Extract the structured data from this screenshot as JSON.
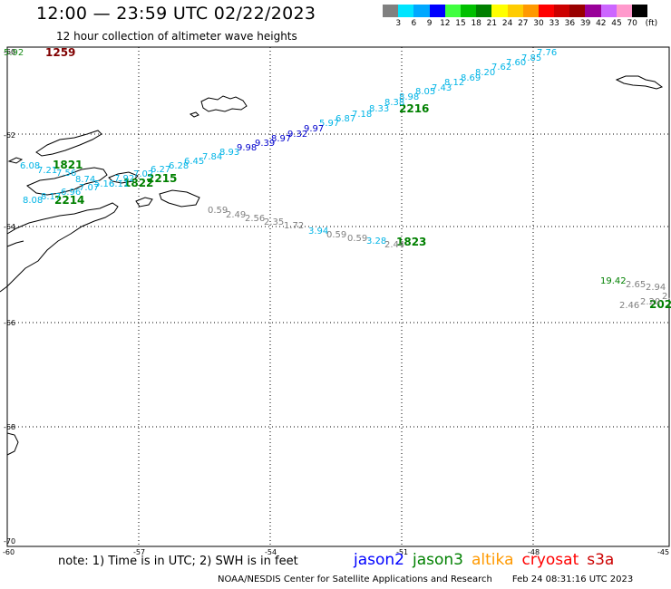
{
  "header": {
    "title": "12:00 — 23:59 UTC 02/22/2023",
    "subtitle": "12 hour collection of altimeter wave heights"
  },
  "legend": {
    "unit": "(ft)",
    "colors": [
      "#808080",
      "#00e5ff",
      "#00a8ff",
      "#0000ff",
      "#40ff40",
      "#00c000",
      "#008000",
      "#ffff00",
      "#ffcc00",
      "#ff9900",
      "#ff0000",
      "#cc0000",
      "#990000",
      "#990099",
      "#cc66ff",
      "#ff99cc",
      "#000000"
    ],
    "ticks": [
      "3",
      "6",
      "9",
      "12",
      "15",
      "18",
      "21",
      "24",
      "27",
      "30",
      "33",
      "36",
      "39",
      "42",
      "45",
      "70"
    ]
  },
  "axes": {
    "lat_labels": [
      "-60",
      "-62",
      "-64",
      "-66",
      "-68",
      "-70"
    ],
    "lon_labels": [
      "-60",
      "-57",
      "-54",
      "-51",
      "-48",
      "-45"
    ]
  },
  "colors": {
    "cyan": "#00b4e6",
    "blue": "#0000cc",
    "gray": "#808080",
    "green": "#008000",
    "darkgreen": "#1a8c1a",
    "maroon": "#800000"
  },
  "time_labels": [
    {
      "text": "1259",
      "color": "maroon"
    },
    {
      "text": "2216",
      "color": "green"
    },
    {
      "text": "1821",
      "color": "green"
    },
    {
      "text": "1822",
      "color": "green"
    },
    {
      "text": "2215",
      "color": "green"
    },
    {
      "text": "2214",
      "color": "green"
    },
    {
      "text": "1823",
      "color": "green"
    },
    {
      "text": "202",
      "color": "green"
    }
  ],
  "wave_labels": [
    {
      "text": "5.92",
      "color": "darkgreen"
    },
    {
      "text": "7.76",
      "color": "cyan"
    },
    {
      "text": "7.85",
      "color": "cyan"
    },
    {
      "text": "7.60",
      "color": "cyan"
    },
    {
      "text": "7.62",
      "color": "cyan"
    },
    {
      "text": "8.20",
      "color": "cyan"
    },
    {
      "text": "8.69",
      "color": "cyan"
    },
    {
      "text": "8.12",
      "color": "cyan"
    },
    {
      "text": "7.43",
      "color": "cyan"
    },
    {
      "text": "8.05",
      "color": "cyan"
    },
    {
      "text": "8.98",
      "color": "cyan"
    },
    {
      "text": "8.38",
      "color": "cyan"
    },
    {
      "text": "8.33",
      "color": "cyan"
    },
    {
      "text": "7.18",
      "color": "cyan"
    },
    {
      "text": "6.87",
      "color": "cyan"
    },
    {
      "text": "5.97",
      "color": "cyan"
    },
    {
      "text": "9.97",
      "color": "blue"
    },
    {
      "text": "9.32",
      "color": "blue"
    },
    {
      "text": "8.97",
      "color": "blue"
    },
    {
      "text": "9.39",
      "color": "blue"
    },
    {
      "text": "9.98",
      "color": "blue"
    },
    {
      "text": "8.93",
      "color": "cyan"
    },
    {
      "text": "7.84",
      "color": "cyan"
    },
    {
      "text": "6.45",
      "color": "cyan"
    },
    {
      "text": "6.28",
      "color": "cyan"
    },
    {
      "text": "6.27",
      "color": "cyan"
    },
    {
      "text": "7.02",
      "color": "cyan"
    },
    {
      "text": "7.92",
      "color": "cyan"
    },
    {
      "text": "6.11",
      "color": "cyan"
    },
    {
      "text": "5.16",
      "color": "cyan"
    },
    {
      "text": "8.74",
      "color": "cyan"
    },
    {
      "text": "7.56",
      "color": "cyan"
    },
    {
      "text": "7.07",
      "color": "cyan"
    },
    {
      "text": "6.08",
      "color": "cyan"
    },
    {
      "text": "7.21",
      "color": "cyan"
    },
    {
      "text": "6.96",
      "color": "cyan"
    },
    {
      "text": "8.17",
      "color": "cyan"
    },
    {
      "text": "8.08",
      "color": "cyan"
    },
    {
      "text": "0.59",
      "color": "gray"
    },
    {
      "text": "2.49",
      "color": "gray"
    },
    {
      "text": "2.56",
      "color": "gray"
    },
    {
      "text": "2.35",
      "color": "gray"
    },
    {
      "text": "1.72",
      "color": "gray"
    },
    {
      "text": "3.94",
      "color": "cyan"
    },
    {
      "text": "0.59",
      "color": "gray"
    },
    {
      "text": "0.59",
      "color": "gray"
    },
    {
      "text": "3.28",
      "color": "cyan"
    },
    {
      "text": "2.44",
      "color": "gray"
    },
    {
      "text": "19.42",
      "color": "green"
    },
    {
      "text": "2.65",
      "color": "gray"
    },
    {
      "text": "2.94",
      "color": "gray"
    },
    {
      "text": "2.46",
      "color": "gray"
    },
    {
      "text": "2.20",
      "color": "gray"
    },
    {
      "text": "2.59",
      "color": "gray"
    }
  ],
  "footer": {
    "note": "note: 1) Time is in UTC; 2) SWH is in feet",
    "satellites": [
      {
        "name": "jason2",
        "color": "#0000ff"
      },
      {
        "name": "jason3",
        "color": "#008000"
      },
      {
        "name": "altika",
        "color": "#ff9900"
      },
      {
        "name": "cryosat",
        "color": "#ff0000"
      },
      {
        "name": "s3a",
        "color": "#cc0000"
      }
    ],
    "credit": "NOAA/NESDIS Center for Satellite Applications and Research",
    "timestamp": "Feb 24 08:31:16 UTC 2023"
  }
}
